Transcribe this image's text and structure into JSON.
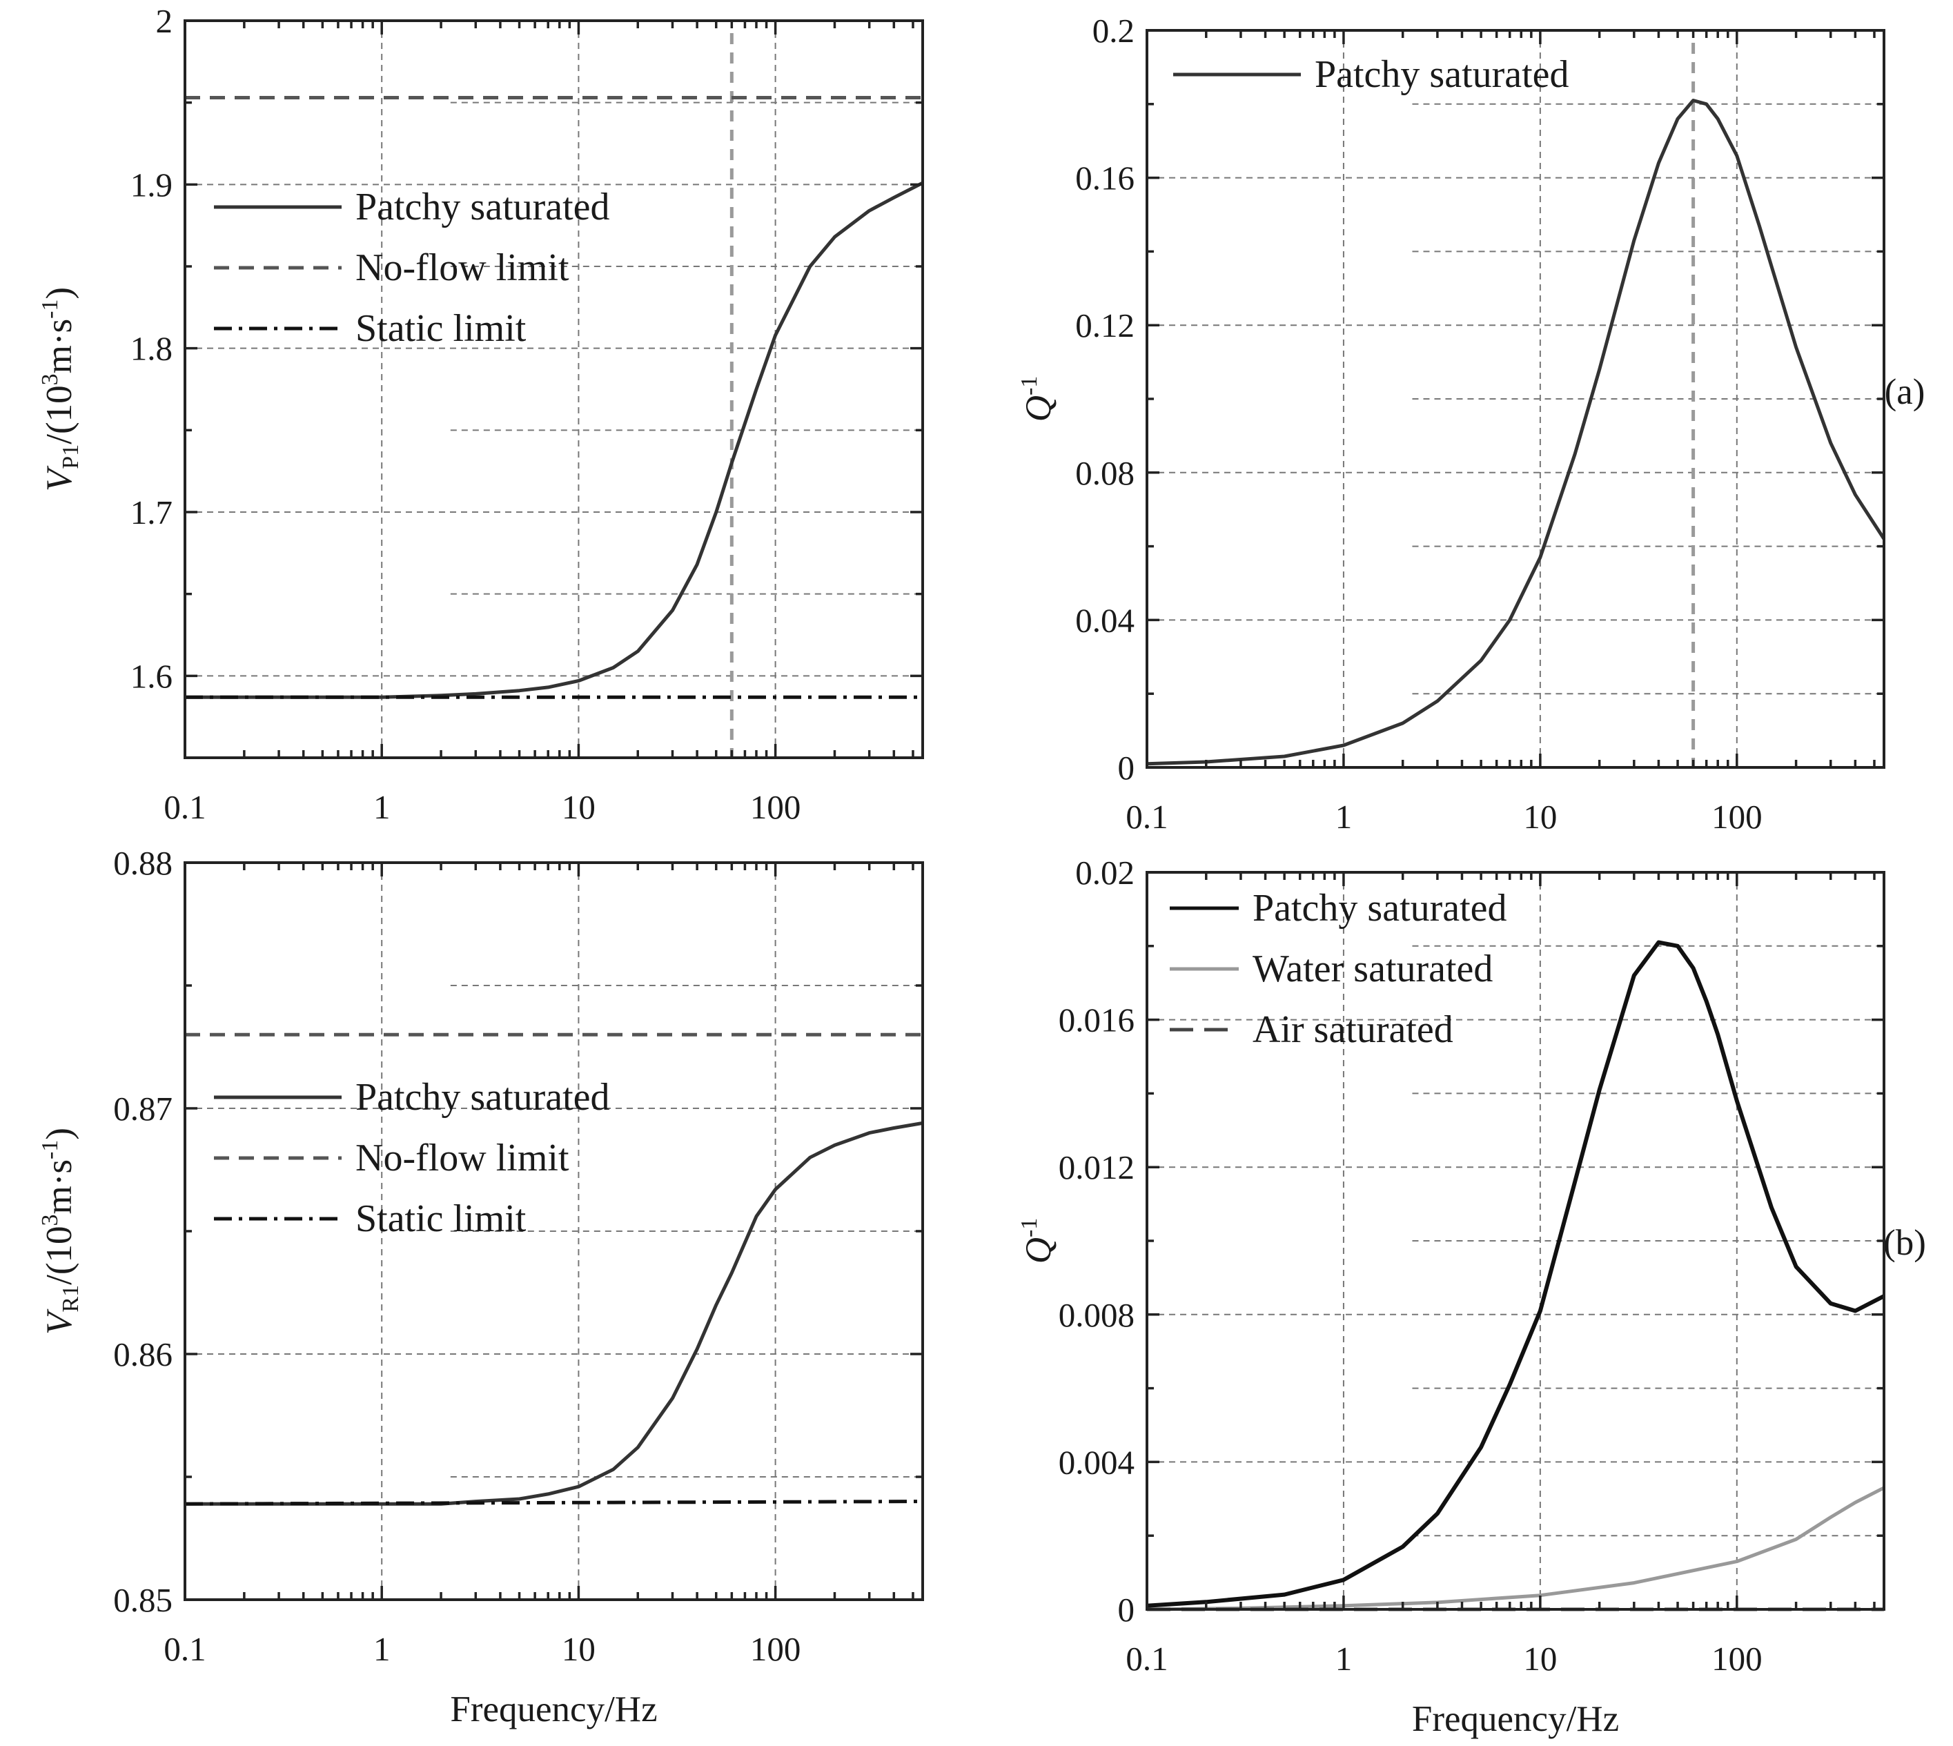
{
  "colors": {
    "frame": "#222222",
    "grid": "#777777",
    "patchy": "#333333",
    "patchy_dark": "#111111",
    "water": "#999999",
    "air": "#444444",
    "noflow": "#555555",
    "static": "#111111",
    "fc_marker": "#9a9a9a"
  },
  "chart_data": [
    {
      "id": "vp",
      "type": "line",
      "xscale": "log",
      "xlim": [
        0.1,
        560
      ],
      "ylim": [
        1.55,
        2.0
      ],
      "xticks": [
        {
          "v": 0.1,
          "label": "0.1"
        },
        {
          "v": 1,
          "label": "1"
        },
        {
          "v": 10,
          "label": "10"
        },
        {
          "v": 100,
          "label": "100"
        }
      ],
      "yticks": [
        {
          "v": 1.6,
          "label": "1.6"
        },
        {
          "v": 1.7,
          "label": "1.7"
        },
        {
          "v": 1.8,
          "label": "1.8"
        },
        {
          "v": 1.9,
          "label": "1.9"
        },
        {
          "v": 2.0,
          "label": "2"
        }
      ],
      "xlabel": "",
      "ylabel_main": "V",
      "ylabel_sub": "P1",
      "ylabel_rest_a": "/(10",
      "ylabel_sup": "3",
      "ylabel_rest_b": "m·s",
      "ylabel_sup2": "-1",
      "ylabel_rest_c": ")",
      "vline_x": 60,
      "legend": [
        {
          "label": "Patchy saturated",
          "style": "solid"
        },
        {
          "label": "No-flow limit",
          "style": "dash"
        },
        {
          "label": "Static limit",
          "style": "dashdot"
        }
      ],
      "series": [
        {
          "name": "Patchy saturated",
          "style": "solid",
          "color": "patchy",
          "x": [
            0.1,
            0.3,
            1,
            2,
            3,
            5,
            7,
            10,
            15,
            20,
            30,
            40,
            50,
            60,
            80,
            100,
            150,
            200,
            300,
            400,
            560
          ],
          "y": [
            1.587,
            1.587,
            1.587,
            1.588,
            1.589,
            1.591,
            1.593,
            1.597,
            1.605,
            1.615,
            1.64,
            1.668,
            1.7,
            1.73,
            1.775,
            1.808,
            1.85,
            1.868,
            1.884,
            1.892,
            1.901
          ]
        },
        {
          "name": "No-flow limit",
          "style": "dash",
          "color": "noflow",
          "x": [
            0.1,
            560
          ],
          "y": [
            1.953,
            1.953
          ]
        },
        {
          "name": "Static limit",
          "style": "dashdot",
          "color": "static",
          "x": [
            0.1,
            560
          ],
          "y": [
            1.587,
            1.587
          ]
        }
      ]
    },
    {
      "id": "qp",
      "type": "line",
      "xscale": "log",
      "xlim": [
        0.1,
        560
      ],
      "ylim": [
        0,
        0.2
      ],
      "xticks": [
        {
          "v": 0.1,
          "label": "0.1"
        },
        {
          "v": 1,
          "label": "1"
        },
        {
          "v": 10,
          "label": "10"
        },
        {
          "v": 100,
          "label": "100"
        }
      ],
      "yticks": [
        {
          "v": 0,
          "label": "0"
        },
        {
          "v": 0.04,
          "label": "0.04"
        },
        {
          "v": 0.08,
          "label": "0.08"
        },
        {
          "v": 0.12,
          "label": "0.12"
        },
        {
          "v": 0.16,
          "label": "0.16"
        },
        {
          "v": 0.2,
          "label": "0.2"
        }
      ],
      "xlabel": "",
      "ylabel_main": "Q",
      "ylabel_sup": "-1",
      "vline_x": 60,
      "tag": "(a)",
      "legend": [
        {
          "label": "Patchy saturated",
          "style": "solid"
        }
      ],
      "series": [
        {
          "name": "Patchy saturated",
          "style": "solid",
          "color": "patchy",
          "x": [
            0.1,
            0.2,
            0.5,
            1,
            2,
            3,
            5,
            7,
            10,
            15,
            20,
            30,
            40,
            50,
            60,
            70,
            80,
            100,
            130,
            150,
            200,
            300,
            400,
            560
          ],
          "y": [
            0.001,
            0.0015,
            0.003,
            0.006,
            0.012,
            0.018,
            0.029,
            0.04,
            0.057,
            0.085,
            0.108,
            0.143,
            0.164,
            0.176,
            0.181,
            0.18,
            0.176,
            0.166,
            0.147,
            0.136,
            0.114,
            0.088,
            0.074,
            0.062
          ]
        }
      ]
    },
    {
      "id": "vr",
      "type": "line",
      "xscale": "log",
      "xlim": [
        0.1,
        560
      ],
      "ylim": [
        0.85,
        0.88
      ],
      "xticks": [
        {
          "v": 0.1,
          "label": "0.1"
        },
        {
          "v": 1,
          "label": "1"
        },
        {
          "v": 10,
          "label": "10"
        },
        {
          "v": 100,
          "label": "100"
        }
      ],
      "yticks": [
        {
          "v": 0.85,
          "label": "0.85"
        },
        {
          "v": 0.86,
          "label": "0.86"
        },
        {
          "v": 0.87,
          "label": "0.87"
        },
        {
          "v": 0.88,
          "label": "0.88"
        }
      ],
      "xlabel": "Frequency/Hz",
      "ylabel_main": "V",
      "ylabel_sub": "R1",
      "ylabel_rest_a": "/(10",
      "ylabel_sup": "3",
      "ylabel_rest_b": "m·s",
      "ylabel_sup2": "-1",
      "ylabel_rest_c": ")",
      "legend": [
        {
          "label": "Patchy saturated",
          "style": "solid"
        },
        {
          "label": "No-flow limit",
          "style": "dash"
        },
        {
          "label": "Static limit",
          "style": "dashdot"
        }
      ],
      "series": [
        {
          "name": "Patchy saturated",
          "style": "solid",
          "color": "patchy",
          "x": [
            0.1,
            0.5,
            1,
            2,
            3,
            5,
            7,
            10,
            15,
            20,
            30,
            40,
            50,
            60,
            80,
            100,
            150,
            200,
            300,
            400,
            560
          ],
          "y": [
            0.8539,
            0.8539,
            0.8539,
            0.8539,
            0.854,
            0.8541,
            0.8543,
            0.8546,
            0.8553,
            0.8562,
            0.8582,
            0.8602,
            0.862,
            0.8633,
            0.8656,
            0.8667,
            0.868,
            0.8685,
            0.869,
            0.8692,
            0.8694
          ]
        },
        {
          "name": "No-flow limit",
          "style": "dash",
          "color": "noflow",
          "x": [
            0.1,
            560
          ],
          "y": [
            0.873,
            0.873
          ]
        },
        {
          "name": "Static limit",
          "style": "dashdot",
          "color": "static",
          "x": [
            0.1,
            560
          ],
          "y": [
            0.8539,
            0.854
          ]
        }
      ]
    },
    {
      "id": "qr",
      "type": "line",
      "xscale": "log",
      "xlim": [
        0.1,
        560
      ],
      "ylim": [
        0,
        0.02
      ],
      "xticks": [
        {
          "v": 0.1,
          "label": "0.1"
        },
        {
          "v": 1,
          "label": "1"
        },
        {
          "v": 10,
          "label": "10"
        },
        {
          "v": 100,
          "label": "100"
        }
      ],
      "yticks": [
        {
          "v": 0,
          "label": "0"
        },
        {
          "v": 0.004,
          "label": "0.004"
        },
        {
          "v": 0.008,
          "label": "0.008"
        },
        {
          "v": 0.012,
          "label": "0.012"
        },
        {
          "v": 0.016,
          "label": "0.016"
        },
        {
          "v": 0.02,
          "label": "0.02"
        }
      ],
      "xlabel": "Frequency/Hz",
      "ylabel_main": "Q",
      "ylabel_sup": "-1",
      "tag": "(b)",
      "legend": [
        {
          "label": "Patchy saturated",
          "style": "solid",
          "color": "patchy_dark"
        },
        {
          "label": "Water saturated",
          "style": "solid",
          "color": "water"
        },
        {
          "label": "Air saturated",
          "style": "longdash",
          "color": "air"
        }
      ],
      "series": [
        {
          "name": "Patchy saturated",
          "style": "solid",
          "color": "patchy_dark",
          "x": [
            0.1,
            0.2,
            0.5,
            1,
            2,
            3,
            5,
            7,
            10,
            15,
            20,
            30,
            40,
            50,
            60,
            70,
            80,
            100,
            150,
            200,
            300,
            400,
            560
          ],
          "y": [
            0.0001,
            0.0002,
            0.0004,
            0.0008,
            0.0017,
            0.0026,
            0.0044,
            0.0061,
            0.0081,
            0.0116,
            0.0141,
            0.0172,
            0.0181,
            0.018,
            0.0174,
            0.0165,
            0.0156,
            0.0138,
            0.0109,
            0.0093,
            0.0083,
            0.0081,
            0.0085
          ]
        },
        {
          "name": "Water saturated",
          "style": "solid",
          "color": "water",
          "x": [
            0.1,
            0.3,
            1,
            3,
            10,
            30,
            100,
            200,
            300,
            400,
            560
          ],
          "y": [
            0.0,
            3e-05,
            0.0001,
            0.00019,
            0.00038,
            0.00072,
            0.0013,
            0.0019,
            0.0025,
            0.0029,
            0.0033
          ]
        },
        {
          "name": "Air saturated",
          "style": "longdash",
          "color": "air",
          "x": [
            0.1,
            560
          ],
          "y": [
            0.0,
            0.0
          ]
        }
      ]
    }
  ]
}
